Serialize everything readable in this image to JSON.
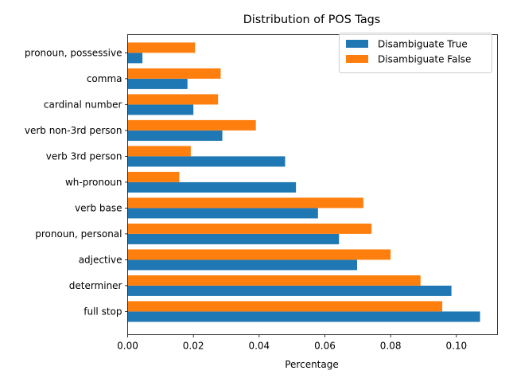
{
  "chart_data": {
    "type": "bar",
    "orientation": "horizontal",
    "title": "Distribution of POS Tags",
    "xlabel": "Percentage",
    "ylabel": "",
    "xlim": [
      0.0,
      0.1125
    ],
    "xticks": [
      0.0,
      0.02,
      0.04,
      0.06,
      0.08,
      0.1
    ],
    "xtick_labels": [
      "0.00",
      "0.02",
      "0.04",
      "0.06",
      "0.08",
      "0.10"
    ],
    "grid": false,
    "legend_position": "top-right",
    "categories": [
      "full stop",
      "determiner",
      "adjective",
      "pronoun, personal",
      "verb base",
      "wh-pronoun",
      "verb 3rd person",
      "verb non-3rd person",
      "cardinal number",
      "comma",
      "pronoun, possessive"
    ],
    "series": [
      {
        "name": "Disambiguate True",
        "color": "#1f77b4",
        "values": [
          0.1072,
          0.0985,
          0.0698,
          0.0643,
          0.0579,
          0.0512,
          0.0479,
          0.0288,
          0.02,
          0.0182,
          0.0045
        ]
      },
      {
        "name": "Disambiguate False",
        "color": "#ff7f0e",
        "values": [
          0.0957,
          0.0891,
          0.08,
          0.0742,
          0.0717,
          0.0157,
          0.0192,
          0.039,
          0.0275,
          0.0283,
          0.0205
        ]
      }
    ]
  }
}
